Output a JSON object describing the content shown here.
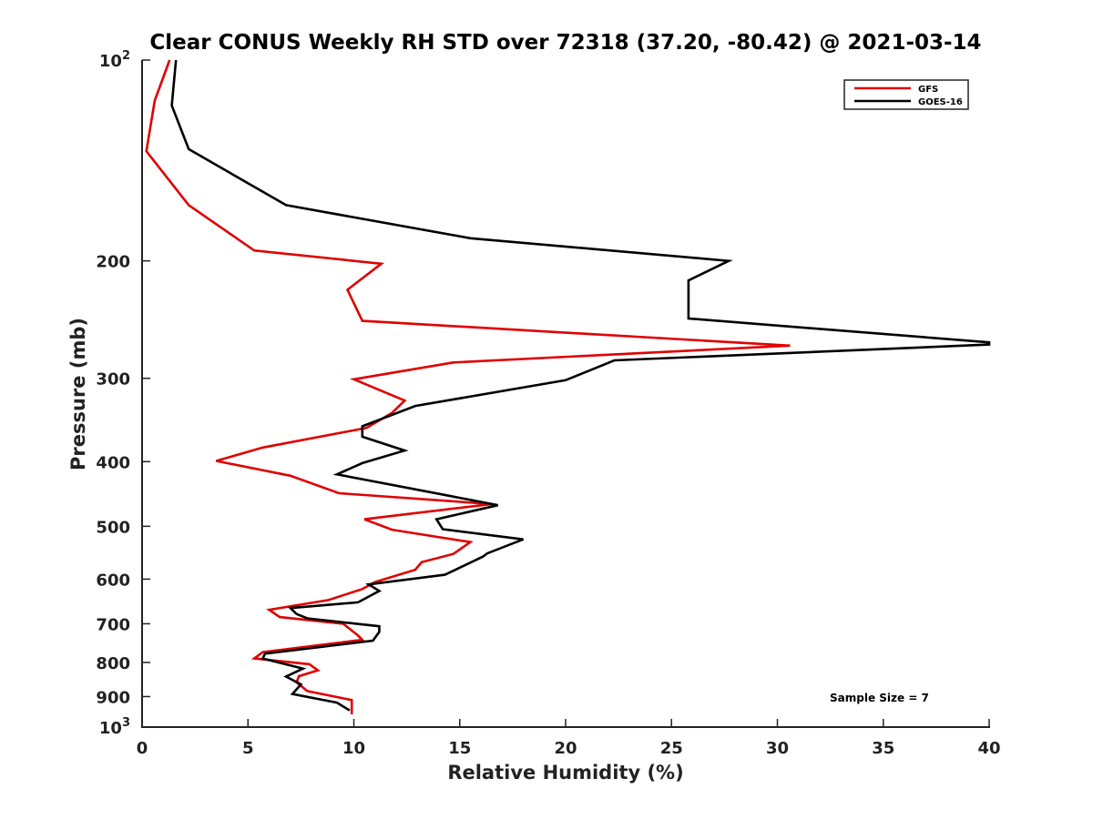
{
  "chart_data": {
    "type": "line",
    "title": "Clear CONUS Weekly RH STD over 72318 (37.20, -80.42) @ 2021-03-14",
    "xlabel": "Relative Humidity (%)",
    "ylabel": "Pressure (mb)",
    "xlim": [
      0,
      40
    ],
    "ylim": [
      1000,
      100
    ],
    "y_scale": "log",
    "y_reversed": true,
    "x_ticks": [
      0,
      5,
      10,
      15,
      20,
      25,
      30,
      35,
      40
    ],
    "y_ticks": [
      {
        "value": 100,
        "base": "10",
        "exp": "2"
      },
      {
        "value": 200,
        "label": "200"
      },
      {
        "value": 300,
        "label": "300"
      },
      {
        "value": 400,
        "label": "400"
      },
      {
        "value": 500,
        "label": "500"
      },
      {
        "value": 600,
        "label": "600"
      },
      {
        "value": 700,
        "label": "700"
      },
      {
        "value": 800,
        "label": "800"
      },
      {
        "value": 900,
        "label": "900"
      },
      {
        "value": 1000,
        "base": "10",
        "exp": "3"
      }
    ],
    "grid": false,
    "legend": {
      "position": "top-right"
    },
    "annotation": "Sample Size = 7",
    "series": [
      {
        "name": "GFS",
        "color": "#e00000",
        "points": [
          [
            1.3,
            100
          ],
          [
            0.6,
            115
          ],
          [
            0.2,
            137
          ],
          [
            2.2,
            165
          ],
          [
            5.3,
            193
          ],
          [
            11.3,
            202
          ],
          [
            9.7,
            221
          ],
          [
            10.4,
            246
          ],
          [
            30.6,
            268
          ],
          [
            14.7,
            284
          ],
          [
            10.0,
            301
          ],
          [
            12.4,
            324
          ],
          [
            11.8,
            338
          ],
          [
            10.6,
            356
          ],
          [
            5.7,
            381
          ],
          [
            3.5,
            399
          ],
          [
            7.0,
            420
          ],
          [
            9.3,
            446
          ],
          [
            16.5,
            463
          ],
          [
            10.5,
            488
          ],
          [
            11.8,
            506
          ],
          [
            15.5,
            528
          ],
          [
            14.7,
            550
          ],
          [
            13.2,
            566
          ],
          [
            12.9,
            581
          ],
          [
            11.0,
            606
          ],
          [
            10.4,
            621
          ],
          [
            8.8,
            645
          ],
          [
            6.0,
            667
          ],
          [
            6.5,
            684
          ],
          [
            9.5,
            700
          ],
          [
            10.2,
            729
          ],
          [
            10.4,
            740
          ],
          [
            5.7,
            772
          ],
          [
            5.3,
            789
          ],
          [
            7.9,
            805
          ],
          [
            8.3,
            822
          ],
          [
            7.4,
            839
          ],
          [
            7.3,
            857
          ],
          [
            7.8,
            883
          ],
          [
            9.9,
            911
          ],
          [
            9.9,
            957
          ]
        ]
      },
      {
        "name": "GOES-16",
        "color": "#000000",
        "points": [
          [
            1.6,
            100
          ],
          [
            1.4,
            117
          ],
          [
            2.2,
            136
          ],
          [
            6.8,
            165
          ],
          [
            15.5,
            185
          ],
          [
            27.7,
            200
          ],
          [
            25.8,
            214
          ],
          [
            25.8,
            244
          ],
          [
            40.0,
            265
          ],
          [
            40.0,
            267
          ],
          [
            22.3,
            282
          ],
          [
            20.0,
            302
          ],
          [
            12.9,
            330
          ],
          [
            10.4,
            354
          ],
          [
            10.4,
            367
          ],
          [
            12.4,
            385
          ],
          [
            10.4,
            402
          ],
          [
            9.2,
            418
          ],
          [
            14.5,
            450
          ],
          [
            16.8,
            465
          ],
          [
            13.9,
            488
          ],
          [
            14.2,
            505
          ],
          [
            18.0,
            523
          ],
          [
            16.3,
            549
          ],
          [
            16.1,
            555
          ],
          [
            14.3,
            591
          ],
          [
            10.7,
            611
          ],
          [
            11.2,
            625
          ],
          [
            10.2,
            650
          ],
          [
            7.0,
            663
          ],
          [
            7.3,
            677
          ],
          [
            7.8,
            687
          ],
          [
            11.2,
            706
          ],
          [
            11.2,
            720
          ],
          [
            10.9,
            742
          ],
          [
            5.8,
            776
          ],
          [
            5.7,
            789
          ],
          [
            7.6,
            817
          ],
          [
            6.8,
            840
          ],
          [
            7.5,
            863
          ],
          [
            7.1,
            892
          ],
          [
            9.2,
            919
          ],
          [
            9.8,
            944
          ]
        ]
      }
    ]
  }
}
